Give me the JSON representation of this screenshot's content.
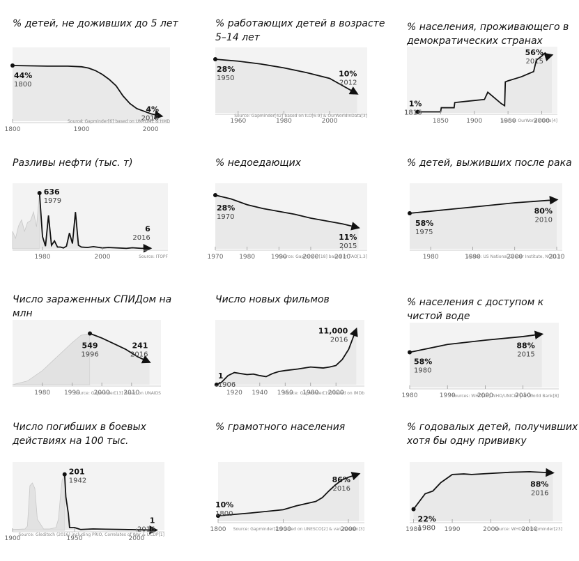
{
  "chart_data": [
    {
      "id": "c1",
      "type": "line",
      "title": "% детей, не доживших до 5 лет",
      "x": [
        1800,
        1850,
        1880,
        1900,
        1910,
        1920,
        1930,
        1940,
        1950,
        1960,
        1970,
        1980,
        1990,
        2000,
        2010,
        2016
      ],
      "y": [
        44,
        43.5,
        43.5,
        43,
        42,
        40,
        37,
        33,
        28,
        20,
        14,
        10,
        8,
        6,
        4.6,
        4
      ],
      "xlim": [
        1800,
        2020
      ],
      "ylim": [
        0,
        55
      ],
      "ticks": [
        1800,
        1900,
        2000
      ],
      "start": {
        "value": "44%",
        "year": "1800"
      },
      "end": {
        "value": "4%",
        "year": "2016"
      },
      "source": "Source: Gapminder[6] based on UN-IGME & HMD"
    },
    {
      "id": "c2",
      "type": "line",
      "title": "% работающих детей в возрасте 5–14 лет",
      "x": [
        1950,
        1960,
        1970,
        1980,
        1990,
        2000,
        2006,
        2012
      ],
      "y": [
        28,
        27,
        25.5,
        23.5,
        21,
        18,
        14,
        10
      ],
      "xlim": [
        1950,
        2014
      ],
      "ylim": [
        0,
        32
      ],
      "ticks": [
        1960,
        1980,
        2000
      ],
      "start": {
        "value": "28%",
        "year": "1950"
      },
      "end": {
        "value": "10%",
        "year": "2012"
      },
      "source": "Source: Gapminder[42] based on ILO[6-9] & OurWorldInData[3]"
    },
    {
      "id": "c3",
      "type": "line",
      "title": "% населения, проживающего в демократических странах",
      "x": [
        1816,
        1850,
        1851,
        1870,
        1871,
        1900,
        1915,
        1920,
        1940,
        1945,
        1946,
        1950,
        1960,
        1970,
        1988,
        1992,
        2000,
        2005,
        2010,
        2015
      ],
      "y": [
        1,
        1,
        5,
        5,
        10,
        12,
        13,
        20,
        9,
        7,
        30,
        31,
        33,
        35,
        40,
        51,
        55,
        58,
        55,
        56
      ],
      "xlim": [
        1800,
        2015
      ],
      "ylim": [
        0,
        60
      ],
      "ticks": [
        1850,
        1900,
        1950,
        2000
      ],
      "start": {
        "value": "1%",
        "year": "1816"
      },
      "end": {
        "value": "56%",
        "year": "2015"
      },
      "source": "Source: OurWorldInData[4]"
    },
    {
      "id": "c4",
      "type": "line",
      "title": "Разливы нефти (тыс. т)",
      "x": [
        1979,
        1980,
        1981,
        1982,
        1983,
        1984,
        1985,
        1986,
        1987,
        1988,
        1989,
        1990,
        1991,
        1992,
        1993,
        1995,
        1997,
        2000,
        2002,
        2005,
        2008,
        2010,
        2013,
        2016
      ],
      "y": [
        636,
        140,
        30,
        380,
        40,
        90,
        20,
        20,
        10,
        30,
        180,
        60,
        420,
        40,
        20,
        15,
        25,
        10,
        15,
        10,
        5,
        12,
        5,
        6
      ],
      "context_x": [
        1970,
        1971,
        1972,
        1973,
        1974,
        1975,
        1976,
        1977,
        1978,
        1979
      ],
      "context_y": [
        200,
        120,
        260,
        330,
        200,
        300,
        320,
        420,
        250,
        636
      ],
      "xlim": [
        1970,
        2020
      ],
      "ylim": [
        0,
        700
      ],
      "ticks": [
        1980,
        2000
      ],
      "start": {
        "value": "636",
        "year": "1979"
      },
      "end": {
        "value": "6",
        "year": "2016"
      },
      "source": "Source: ITOPF"
    },
    {
      "id": "c5",
      "type": "line",
      "title": "% недоедающих",
      "x": [
        1970,
        1975,
        1980,
        1985,
        1990,
        1995,
        2000,
        2005,
        2010,
        2015
      ],
      "y": [
        28,
        26,
        23,
        21,
        19.5,
        18,
        16,
        14.5,
        13,
        11
      ],
      "xlim": [
        1970,
        2016
      ],
      "ylim": [
        0,
        32
      ],
      "ticks": [
        1970,
        1980,
        1990,
        2000,
        2010
      ],
      "start": {
        "value": "28%",
        "year": "1970"
      },
      "end": {
        "value": "11%",
        "year": "2015"
      },
      "source": "Source: Gapminder[18] based on FAO[1,3]"
    },
    {
      "id": "c6",
      "type": "line",
      "title": "% детей, выживших после рака",
      "x": [
        1975,
        1990,
        2000,
        2010
      ],
      "y": [
        58,
        68,
        75,
        80
      ],
      "xlim": [
        1975,
        2010
      ],
      "ylim": [
        0,
        100
      ],
      "ticks": [
        1980,
        1990,
        2000,
        2010
      ],
      "start": {
        "value": "58%",
        "year": "1975"
      },
      "end": {
        "value": "80%",
        "year": "2010"
      },
      "source": "Source: US National Cancer Institute, NCI[1,2]"
    },
    {
      "id": "c7",
      "type": "line",
      "title": "Число зараженных СПИДом на млн",
      "x": [
        1996,
        2000,
        2004,
        2008,
        2012,
        2016
      ],
      "y": [
        549,
        500,
        440,
        380,
        300,
        241
      ],
      "context_x": [
        1970,
        1975,
        1980,
        1985,
        1990,
        1993,
        1996
      ],
      "context_y": [
        0,
        40,
        150,
        300,
        450,
        530,
        549
      ],
      "xlim": [
        1970,
        2018
      ],
      "ylim": [
        0,
        650
      ],
      "ticks": [
        1980,
        1990,
        2000,
        2010
      ],
      "start": {
        "value": "549",
        "year": "1996"
      },
      "end": {
        "value": "241",
        "year": "2016"
      },
      "source": "Source: Gapminder[13] based on UNAIDS"
    },
    {
      "id": "c8",
      "type": "line",
      "title": "Число новых фильмов",
      "x": [
        1906,
        1910,
        1915,
        1920,
        1925,
        1930,
        1935,
        1940,
        1945,
        1950,
        1955,
        1960,
        1970,
        1980,
        1990,
        1995,
        2000,
        2005,
        2010,
        2016
      ],
      "y": [
        1,
        500,
        1800,
        2400,
        2200,
        2000,
        2100,
        1800,
        1600,
        2200,
        2600,
        2800,
        3100,
        3500,
        3300,
        3500,
        3800,
        5000,
        7000,
        11000
      ],
      "xlim": [
        1905,
        2018
      ],
      "ylim": [
        0,
        12000
      ],
      "ticks": [
        1920,
        1940,
        1960,
        1980,
        2000
      ],
      "start": {
        "value": "1",
        "year": "1906"
      },
      "end": {
        "value": "11,000",
        "year": "2016"
      },
      "source": "Source: Gapminder[19] based on IMDb"
    },
    {
      "id": "c9",
      "type": "line",
      "title": "% населения с доступом к чистой воде",
      "x": [
        1980,
        1990,
        2000,
        2010,
        2015
      ],
      "y": [
        58,
        71,
        78,
        84,
        88
      ],
      "xlim": [
        1980,
        2018
      ],
      "ylim": [
        0,
        100
      ],
      "ticks": [
        1980,
        1990,
        2000,
        2010
      ],
      "start": {
        "value": "58%",
        "year": "1980"
      },
      "end": {
        "value": "88%",
        "year": "2015"
      },
      "source": "Sources: WHO[16],WHO/UNICEF JMP,World Bank[8]"
    },
    {
      "id": "c10",
      "type": "line",
      "title": "Число погибших в боевых действиях на 100 тыс.",
      "x": [
        1942,
        1943,
        1944,
        1945,
        1946,
        1950,
        1955,
        1965,
        1975,
        1990,
        2000,
        2016
      ],
      "y": [
        201,
        120,
        90,
        60,
        10,
        10,
        3,
        5,
        4,
        3,
        2,
        1
      ],
      "context_x": [
        1900,
        1910,
        1912,
        1914,
        1916,
        1918,
        1920,
        1925,
        1930,
        1935,
        1937,
        1939,
        1940,
        1942
      ],
      "context_y": [
        3,
        5,
        15,
        160,
        170,
        150,
        40,
        5,
        5,
        10,
        40,
        140,
        180,
        201
      ],
      "xlim": [
        1900,
        2018
      ],
      "ylim": [
        0,
        230
      ],
      "ticks": [
        1900,
        1950,
        2000
      ],
      "start": {
        "value": "201",
        "year": "1942"
      },
      "end": {
        "value": "1",
        "year": "2016"
      },
      "source": "Source: Gleditsch (2016) including PRIO, Correlates of War & UCDP[1]"
    },
    {
      "id": "c11",
      "type": "line",
      "title": "% грамотного населения",
      "x": [
        1800,
        1850,
        1900,
        1920,
        1950,
        1960,
        1970,
        1980,
        1990,
        2000,
        2016
      ],
      "y": [
        10,
        15,
        21,
        28,
        36,
        43,
        55,
        66,
        75,
        80,
        86
      ],
      "xlim": [
        1800,
        2016
      ],
      "ylim": [
        0,
        100
      ],
      "ticks": [
        1800,
        1900,
        2000
      ],
      "start": {
        "value": "10%",
        "year": "1800"
      },
      "end": {
        "value": "86%",
        "year": "2016"
      },
      "source": "Source: Gapminder[21] based on UNESCO[2] & van Zanden[3]"
    },
    {
      "id": "c12",
      "type": "line",
      "title": "% годовалых детей, получивших хотя бы одну прививку",
      "x": [
        1980,
        1983,
        1985,
        1987,
        1990,
        1993,
        1995,
        2000,
        2005,
        2010,
        2016
      ],
      "y": [
        22,
        50,
        55,
        70,
        85,
        86,
        85,
        87,
        89,
        90,
        88
      ],
      "xlim": [
        1979,
        2017
      ],
      "ylim": [
        0,
        100
      ],
      "ticks": [
        1980,
        1990,
        2000,
        2010
      ],
      "start": {
        "value": "22%",
        "year": "1980"
      },
      "end": {
        "value": "88%",
        "year": "2016"
      },
      "source": "Source: WHO[1], Gapminder[23]"
    }
  ]
}
